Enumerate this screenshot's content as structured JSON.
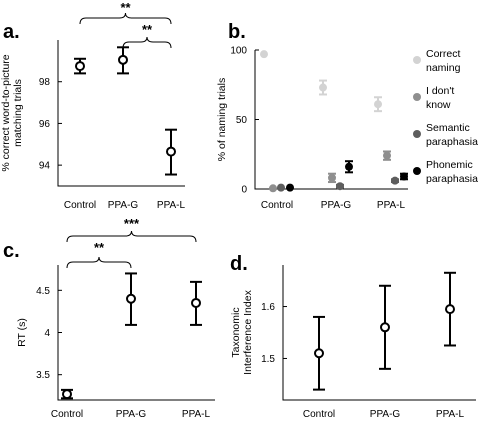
{
  "chart_data": [
    {
      "panel": "a.",
      "type": "scatter",
      "ylabel": "% correct word-to-picture matching trials",
      "ylabel_lines": [
        "% correct word-to-picture",
        "matching trials"
      ],
      "categories": [
        "Control",
        "PPA-G",
        "PPA-L"
      ],
      "yticks": [
        "94",
        "96",
        "98"
      ],
      "ylim": [
        93.0,
        100.0
      ],
      "series": [
        {
          "values": [
            98.75,
            99.05,
            94.65
          ],
          "err_low": [
            0.35,
            0.65,
            1.1
          ],
          "err_high": [
            0.35,
            0.6,
            1.05
          ]
        }
      ],
      "significance": [
        {
          "from": "Control",
          "to": "PPA-L",
          "label": "**"
        },
        {
          "from": "PPA-G",
          "to": "PPA-L",
          "label": "**"
        }
      ]
    },
    {
      "panel": "b.",
      "type": "scatter",
      "ylabel": "% of naming trials",
      "categories": [
        "Control",
        "PPA-G",
        "PPA-L"
      ],
      "yticks": [
        "0",
        "50",
        "100"
      ],
      "ylim": [
        0,
        100
      ],
      "legend_position": "right",
      "series": [
        {
          "name": "Correct naming",
          "name_lines": [
            "Correct",
            "naming"
          ],
          "color": "#d3d3d3",
          "values": [
            97,
            73,
            61
          ],
          "err": [
            0,
            5,
            5
          ]
        },
        {
          "name": "I don't know",
          "name_lines": [
            "I don't",
            "know"
          ],
          "color": "#8f8f8f",
          "values": [
            0.5,
            8,
            24
          ],
          "err": [
            0,
            3,
            3
          ]
        },
        {
          "name": "Semantic paraphasia",
          "name_lines": [
            "Semantic",
            "paraphasia"
          ],
          "color": "#5e5e5e",
          "values": [
            1,
            2,
            6
          ],
          "err": [
            0,
            1,
            1
          ]
        },
        {
          "name": "Phonemic paraphasia",
          "name_lines": [
            "Phonemic",
            "paraphasia"
          ],
          "color": "#000000",
          "values": [
            1,
            16,
            9
          ],
          "err": [
            0,
            4,
            2
          ]
        }
      ]
    },
    {
      "panel": "c.",
      "type": "scatter",
      "ylabel": "RT (s)",
      "categories": [
        "Control",
        "PPA-G",
        "PPA-L"
      ],
      "yticks": [
        "3.5",
        "4",
        "4.5"
      ],
      "ylim": [
        3.2,
        4.8
      ],
      "series": [
        {
          "values": [
            3.27,
            4.4,
            4.35
          ],
          "err_low": [
            0.05,
            0.31,
            0.26
          ],
          "err_high": [
            0.05,
            0.3,
            0.25
          ]
        }
      ],
      "significance": [
        {
          "from": "Control",
          "to": "PPA-L",
          "label": "***"
        },
        {
          "from": "Control",
          "to": "PPA-G",
          "label": "**"
        }
      ]
    },
    {
      "panel": "d.",
      "type": "scatter",
      "ylabel": "Taxonomic Interference Index",
      "ylabel_lines": [
        "Taxonomic",
        "Interference Index"
      ],
      "categories": [
        "Control",
        "PPA-G",
        "PPA-L"
      ],
      "yticks": [
        "1.5",
        "1.6"
      ],
      "ylim": [
        1.42,
        1.68
      ],
      "series": [
        {
          "values": [
            1.51,
            1.56,
            1.595
          ],
          "err_low": [
            0.07,
            0.08,
            0.07
          ],
          "err_high": [
            0.07,
            0.08,
            0.07
          ]
        }
      ]
    }
  ]
}
